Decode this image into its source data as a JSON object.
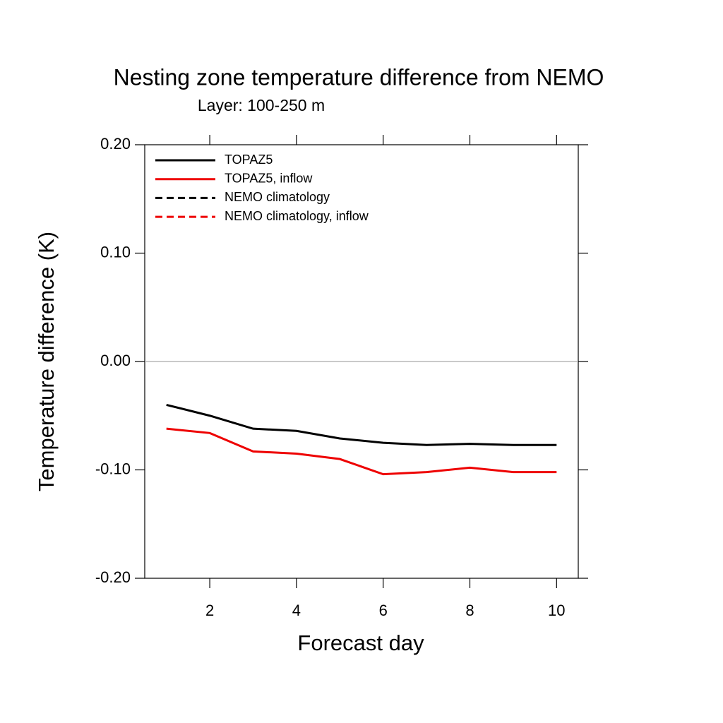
{
  "chart_data": {
    "type": "line",
    "title": "Nesting zone temperature difference from NEMO",
    "subtitle": "Layer: 100-250 m",
    "x_label": "Forecast day",
    "y_label": "Temperature difference (K)",
    "x": [
      1,
      2,
      3,
      4,
      5,
      6,
      7,
      8,
      9,
      10
    ],
    "series": [
      {
        "name": "TOPAZ5",
        "color": "#000000",
        "dash": false,
        "values": [
          -0.04,
          -0.05,
          -0.062,
          -0.064,
          -0.071,
          -0.075,
          -0.077,
          -0.076,
          -0.077,
          -0.077
        ]
      },
      {
        "name": "TOPAZ5, inflow",
        "color": "#ee0000",
        "dash": false,
        "values": [
          -0.062,
          -0.066,
          -0.083,
          -0.085,
          -0.09,
          -0.104,
          -0.102,
          -0.098,
          -0.102,
          -0.102
        ]
      },
      {
        "name": "NEMO climatology",
        "color": "#000000",
        "dash": true,
        "values": [
          null,
          null,
          null,
          null,
          null,
          null,
          null,
          null,
          null,
          null
        ]
      },
      {
        "name": "NEMO climatology, inflow",
        "color": "#ee0000",
        "dash": true,
        "values": [
          null,
          null,
          null,
          null,
          null,
          null,
          null,
          null,
          null,
          null
        ]
      }
    ],
    "xlim": [
      0.5,
      10.5
    ],
    "xticks": [
      2,
      4,
      6,
      8,
      10
    ],
    "ylim": [
      -0.2,
      0.2
    ],
    "yticks": [
      {
        "value": 0.2,
        "label": "0.20"
      },
      {
        "value": 0.1,
        "label": "0.10"
      },
      {
        "value": 0,
        "label": "0.00"
      },
      {
        "value": -0.1,
        "label": "-0.10"
      },
      {
        "value": -0.2,
        "label": "-0.20"
      }
    ],
    "legend": "upper left"
  }
}
